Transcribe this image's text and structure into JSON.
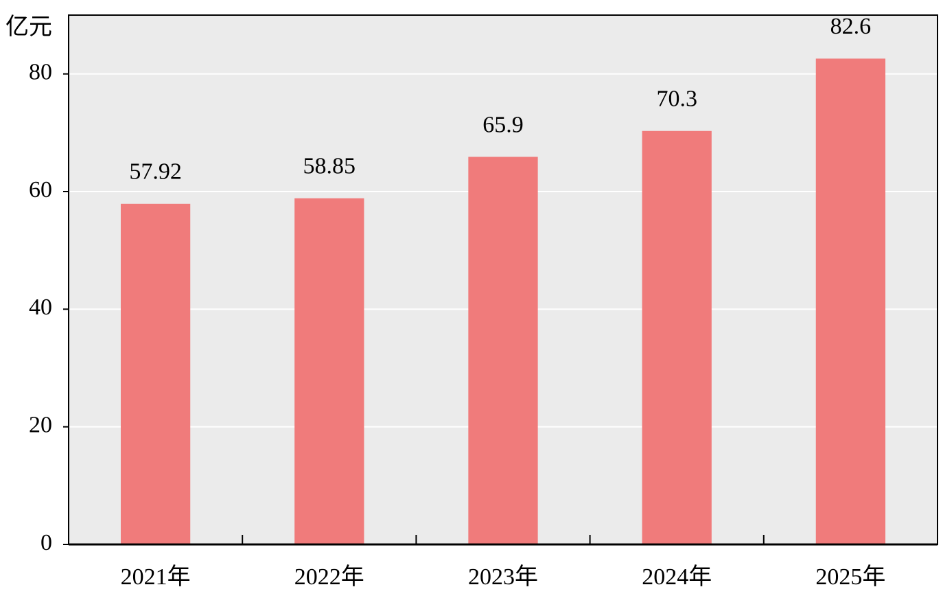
{
  "chart_data": {
    "type": "bar",
    "y_label": "亿元",
    "categories": [
      "2021年",
      "2022年",
      "2023年",
      "2024年",
      "2025年"
    ],
    "values": [
      57.92,
      58.85,
      65.9,
      70.3,
      82.6
    ],
    "color": "#f07b7b",
    "ylim": [
      0,
      90
    ],
    "yticks": [
      0,
      20,
      40,
      60,
      80
    ],
    "grid": true
  }
}
